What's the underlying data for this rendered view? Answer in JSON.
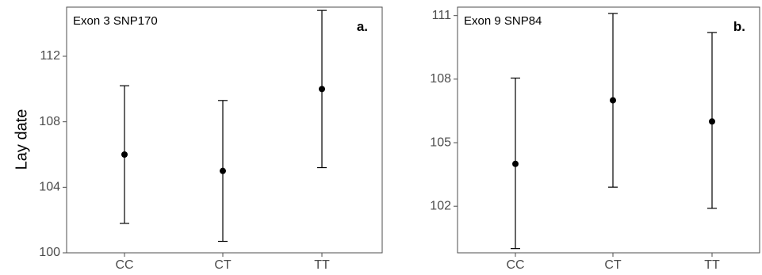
{
  "y_axis_title": "Lay date",
  "colors": {
    "frame": "#4d4d4d",
    "marks": "#000000",
    "background": "#ffffff"
  },
  "chart_data": [
    {
      "type": "scatter",
      "panel_tag": "a.",
      "title": "Exon 3 SNP170",
      "ylabel": "Lay date",
      "categories": [
        "CC",
        "CT",
        "TT"
      ],
      "mean": [
        106,
        105,
        110
      ],
      "lower": [
        101.8,
        100.7,
        105.2
      ],
      "upper": [
        110.2,
        109.3,
        114.8
      ],
      "ylim": [
        100,
        115.0
      ],
      "yticks": [
        100,
        104,
        108,
        112
      ],
      "grid": false
    },
    {
      "type": "scatter",
      "panel_tag": "b.",
      "title": "Exon 9 SNP84",
      "ylabel": "",
      "categories": [
        "CC",
        "CT",
        "TT"
      ],
      "mean": [
        104,
        107,
        106
      ],
      "lower": [
        100.0,
        102.9,
        101.9
      ],
      "upper": [
        108.05,
        111.1,
        110.2
      ],
      "ylim": [
        99.8,
        111.4
      ],
      "yticks": [
        102,
        105,
        108,
        111
      ],
      "grid": false
    }
  ]
}
